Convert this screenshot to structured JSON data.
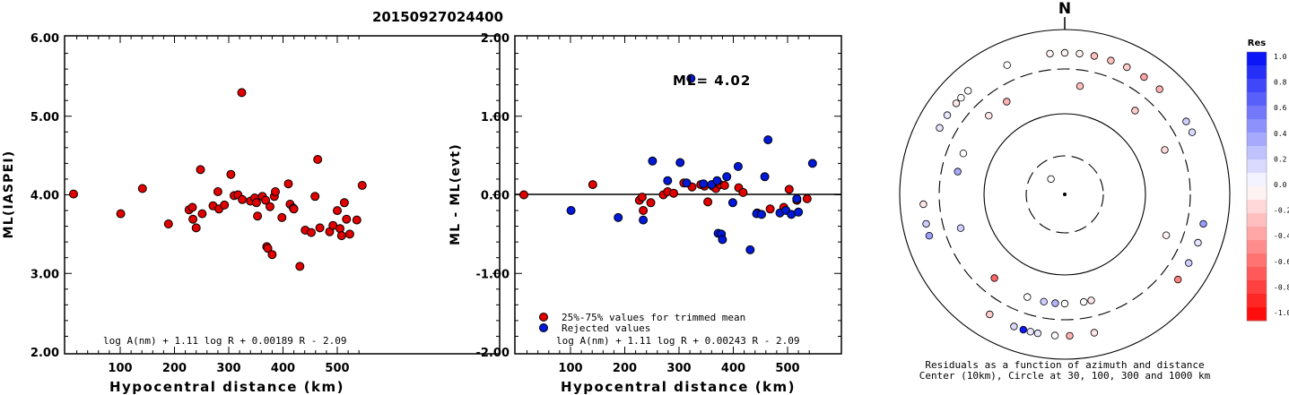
{
  "title": "20150927024400",
  "colors": {
    "red": "#e00000",
    "blue": "#0018d8",
    "stroke": "#000000"
  },
  "chart_data": [
    {
      "type": "scatter",
      "xlabel": "Hypocentral distance (km)",
      "ylabel": "ML(IASPEI)",
      "xlim": [
        0,
        560
      ],
      "ylim": [
        2.0,
        6.0
      ],
      "xticks": [
        "100",
        "200",
        "300",
        "400",
        "500"
      ],
      "yticks": [
        "2.00",
        "3.00",
        "4.00",
        "5.00",
        "6.00"
      ],
      "formula": "log A(nm) + 1.11 log R + 0.00189 R - 2.09",
      "points": [
        [
          14,
          4.01
        ],
        [
          101,
          3.76
        ],
        [
          141,
          4.08
        ],
        [
          189,
          3.63
        ],
        [
          227,
          3.81
        ],
        [
          233,
          3.84
        ],
        [
          234,
          3.69
        ],
        [
          240,
          3.58
        ],
        [
          248,
          4.32
        ],
        [
          251,
          3.76
        ],
        [
          271,
          3.86
        ],
        [
          280,
          4.04
        ],
        [
          282,
          3.82
        ],
        [
          292,
          3.87
        ],
        [
          304,
          4.26
        ],
        [
          310,
          3.99
        ],
        [
          317,
          4.0
        ],
        [
          324,
          5.3
        ],
        [
          325,
          3.94
        ],
        [
          340,
          3.92
        ],
        [
          348,
          3.96
        ],
        [
          351,
          3.9
        ],
        [
          353,
          3.73
        ],
        [
          362,
          3.98
        ],
        [
          368,
          3.93
        ],
        [
          370,
          3.34
        ],
        [
          372,
          3.32
        ],
        [
          376,
          3.85
        ],
        [
          380,
          3.24
        ],
        [
          384,
          3.98
        ],
        [
          386,
          4.04
        ],
        [
          398,
          3.71
        ],
        [
          410,
          4.14
        ],
        [
          413,
          3.88
        ],
        [
          419,
          3.83
        ],
        [
          420,
          3.82
        ],
        [
          431,
          3.09
        ],
        [
          441,
          3.55
        ],
        [
          452,
          3.52
        ],
        [
          459,
          3.98
        ],
        [
          464,
          4.45
        ],
        [
          468,
          3.58
        ],
        [
          486,
          3.53
        ],
        [
          492,
          3.61
        ],
        [
          500,
          3.8
        ],
        [
          505,
          3.57
        ],
        [
          508,
          3.48
        ],
        [
          513,
          3.9
        ],
        [
          517,
          3.69
        ],
        [
          523,
          3.5
        ],
        [
          536,
          3.68
        ],
        [
          546,
          4.12
        ]
      ]
    },
    {
      "type": "scatter",
      "xlabel": "Hypocentral distance (km)",
      "ylabel": "ML - ML(evt)",
      "xlim": [
        0,
        560
      ],
      "ylim": [
        -2.0,
        2.0
      ],
      "xticks": [
        "100",
        "200",
        "300",
        "400",
        "500"
      ],
      "yticks": [
        "-2.00",
        "-1.00",
        "0.00",
        "1.00",
        "2.00"
      ],
      "annotation": "ML= 4.02",
      "legend": [
        {
          "label": "25%-75% values for trimmed mean",
          "color": "#e00000"
        },
        {
          "label": "Rejected values",
          "color": "#0018d8"
        }
      ],
      "formula": "log A(nm) + 1.11 log R + 0.00243 R - 2.09",
      "series": [
        {
          "name": "25%-75% values for trimmed mean",
          "color": "#e00000",
          "points": [
            [
              14,
              0.0
            ],
            [
              141,
              0.13
            ],
            [
              227,
              -0.07
            ],
            [
              232,
              -0.03
            ],
            [
              234,
              -0.2
            ],
            [
              248,
              -0.1
            ],
            [
              271,
              0.0
            ],
            [
              279,
              0.04
            ],
            [
              290,
              0.02
            ],
            [
              309,
              0.15
            ],
            [
              324,
              0.1
            ],
            [
              340,
              0.13
            ],
            [
              347,
              0.11
            ],
            [
              353,
              -0.09
            ],
            [
              362,
              0.11
            ],
            [
              368,
              0.08
            ],
            [
              376,
              0.13
            ],
            [
              384,
              0.12
            ],
            [
              410,
              0.09
            ],
            [
              418,
              0.03
            ],
            [
              444,
              -0.23
            ],
            [
              468,
              -0.18
            ],
            [
              493,
              -0.16
            ],
            [
              503,
              0.07
            ],
            [
              517,
              -0.07
            ],
            [
              536,
              -0.05
            ]
          ]
        },
        {
          "name": "Rejected values",
          "color": "#0018d8",
          "points": [
            [
              101,
              -0.2
            ],
            [
              188,
              -0.29
            ],
            [
              234,
              -0.32
            ],
            [
              251,
              0.43
            ],
            [
              279,
              0.18
            ],
            [
              302,
              0.41
            ],
            [
              314,
              0.15
            ],
            [
              322,
              1.48
            ],
            [
              345,
              0.14
            ],
            [
              360,
              0.13
            ],
            [
              370,
              0.18
            ],
            [
              372,
              -0.49
            ],
            [
              378,
              -0.5
            ],
            [
              380,
              -0.57
            ],
            [
              388,
              0.23
            ],
            [
              399,
              -0.1
            ],
            [
              409,
              0.36
            ],
            [
              431,
              -0.7
            ],
            [
              443,
              -0.24
            ],
            [
              452,
              -0.25
            ],
            [
              458,
              0.23
            ],
            [
              464,
              0.7
            ],
            [
              486,
              -0.23
            ],
            [
              497,
              -0.2
            ],
            [
              507,
              -0.25
            ],
            [
              517,
              -0.05
            ],
            [
              520,
              -0.22
            ],
            [
              546,
              0.4
            ]
          ]
        }
      ]
    },
    {
      "type": "polar",
      "north_label": "N",
      "caption_line1": "Residuals as a function of azimuth and distance",
      "caption_line2": "Center (10km), Circle at 30, 100, 300 and 1000 km",
      "rings_km": [
        30,
        100,
        300,
        1000
      ],
      "points": [
        [
          6,
          1000,
          -0.05
        ],
        [
          0,
          1000,
          -0.05
        ],
        [
          354,
          1000,
          -0.05
        ],
        [
          12,
          1000,
          -0.25
        ],
        [
          19,
          1000,
          -0.25
        ],
        [
          26,
          1000,
          -0.2
        ],
        [
          34,
          1000,
          -0.35
        ],
        [
          42,
          1000,
          -0.3
        ],
        [
          336,
          1000,
          0.0
        ],
        [
          317,
          1000,
          0.0
        ],
        [
          313,
          1000,
          0.0
        ],
        [
          304,
          1000,
          0.1
        ],
        [
          298,
          1000,
          0.05
        ],
        [
          59,
          1000,
          0.2
        ],
        [
          64,
          1000,
          0.15
        ],
        [
          102,
          1000,
          0.4
        ],
        [
          110,
          1000,
          0.1
        ],
        [
          119,
          1000,
          0.2
        ],
        [
          127,
          1000,
          -0.5
        ],
        [
          168,
          1000,
          -0.1
        ],
        [
          178,
          1000,
          -0.3
        ],
        [
          184,
          1000,
          0.0
        ],
        [
          191,
          1000,
          0.1
        ],
        [
          194,
          1000,
          0.1
        ],
        [
          197,
          1000,
          0.95
        ],
        [
          201,
          1000,
          0.15
        ],
        [
          212,
          1000,
          -0.2
        ],
        [
          253,
          1000,
          0.4
        ],
        [
          258,
          1000,
          0.2
        ],
        [
          266,
          1000,
          -0.1
        ],
        [
          298,
          1000,
          0.1
        ],
        [
          310,
          1000,
          -0.1
        ],
        [
          8,
          300,
          -0.25
        ],
        [
          328,
          300,
          -0.3
        ],
        [
          316,
          300,
          -0.1
        ],
        [
          40,
          300,
          -0.2
        ],
        [
          66,
          300,
          -0.15
        ],
        [
          112,
          300,
          -0.05
        ],
        [
          180,
          300,
          0.0
        ],
        [
          166,
          300,
          -0.1
        ],
        [
          170,
          300,
          0.0
        ],
        [
          185,
          300,
          0.3
        ],
        [
          191,
          300,
          0.2
        ],
        [
          200,
          300,
          0.0
        ],
        [
          220,
          300,
          -0.6
        ],
        [
          252,
          300,
          0.2
        ],
        [
          282,
          300,
          0.35
        ],
        [
          292,
          300,
          0.0
        ],
        [
          318,
          30,
          0.0
        ]
      ],
      "colorbar": {
        "title": "Res",
        "labels": [
          "1.0",
          "0.8",
          "0.6",
          "0.4",
          "0.2",
          "0.0",
          "-0.2",
          "-0.4",
          "-0.6",
          "-0.8",
          "-1.0"
        ]
      }
    }
  ]
}
